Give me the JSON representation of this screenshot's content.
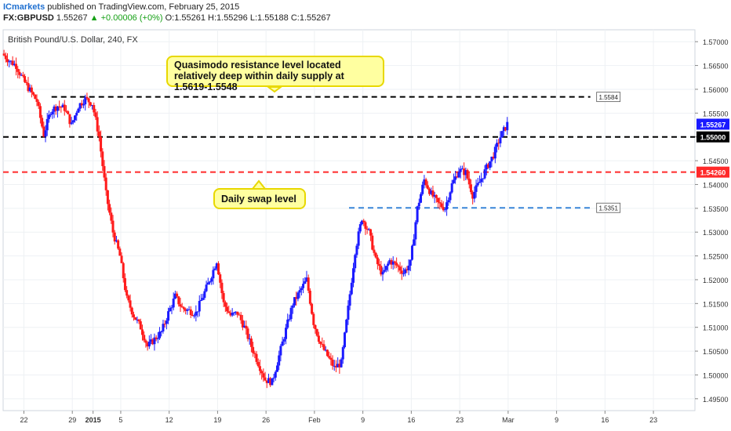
{
  "header": {
    "publisher": "ICmarkets",
    "published_text": "published on TradingView.com, February 25, 2015",
    "symbol": "FX:GBPUSD",
    "last": "1.55267",
    "change": "▲ +0.00006 (+0%)",
    "open": "O:1.55261",
    "high": "H:1.55296",
    "low": "L:1.55188",
    "close": "C:1.55267"
  },
  "chart_title": "British Pound/U.S. Dollar, 240, FX",
  "annotations": {
    "qm_text": "Quasimodo resistance level located relatively deep within daily supply at 1.5619-1.5548",
    "swap_text": "Daily swap level"
  },
  "colors": {
    "up": "#1a1aff",
    "down": "#ff1a1a",
    "resistance": "#000000",
    "swap": "#ff2a2a",
    "support": "#3a86d8",
    "last_price": "#1a1aff"
  },
  "chart_data": {
    "type": "candlestick",
    "title": "British Pound/U.S. Dollar, 240, FX",
    "ylim": [
      1.4925,
      1.5725
    ],
    "y_ticks": [
      "1.57000",
      "1.56500",
      "1.56000",
      "1.55500",
      "1.55000",
      "1.54500",
      "1.54000",
      "1.53500",
      "1.53000",
      "1.52500",
      "1.52000",
      "1.51500",
      "1.51000",
      "1.50500",
      "1.50000",
      "1.49500"
    ],
    "x_ticks": [
      "22",
      "29",
      "2015",
      "5",
      "12",
      "19",
      "26",
      "Feb",
      "9",
      "16",
      "23",
      "Mar",
      "9",
      "16",
      "23"
    ],
    "x_tick_bold": [
      "2015"
    ],
    "x_range": [
      "Dec 19, 2014",
      "Mar 29, 2015"
    ],
    "series": [
      {
        "type": "anchors",
        "note": "approximate price path",
        "points": [
          [
            "Dec 19",
            1.5675
          ],
          [
            "Dec 20",
            1.566
          ],
          [
            "Dec 21",
            1.565
          ],
          [
            "Dec 22",
            1.562
          ],
          [
            "Dec 24",
            1.5575
          ],
          [
            "Dec 25",
            1.5505
          ],
          [
            "Dec 26",
            1.5555
          ],
          [
            "Dec 27",
            1.5565
          ],
          [
            "Dec 28",
            1.556
          ],
          [
            "Dec 29",
            1.5525
          ],
          [
            "Dec 30",
            1.5565
          ],
          [
            "Dec 31",
            1.558
          ],
          [
            "Jan 1",
            1.557
          ],
          [
            "Jan 2",
            1.55
          ],
          [
            "Jan 3",
            1.538
          ],
          [
            "Jan 4",
            1.53
          ],
          [
            "Jan 5",
            1.525
          ],
          [
            "Jan 6",
            1.516
          ],
          [
            "Jan 7",
            1.5125
          ],
          [
            "Jan 8",
            1.51
          ],
          [
            "Jan 9",
            1.506
          ],
          [
            "Jan 10",
            1.5075
          ],
          [
            "Jan 11",
            1.509
          ],
          [
            "Jan 12",
            1.513
          ],
          [
            "Jan 13",
            1.5165
          ],
          [
            "Jan 14",
            1.514
          ],
          [
            "Jan 16",
            1.513
          ],
          [
            "Jan 18",
            1.52
          ],
          [
            "Jan 19",
            1.524
          ],
          [
            "Jan 20",
            1.515
          ],
          [
            "Jan 21",
            1.5125
          ],
          [
            "Jan 22",
            1.513
          ],
          [
            "Jan 23",
            1.51
          ],
          [
            "Jan 24",
            1.506
          ],
          [
            "Jan 26",
            1.499
          ],
          [
            "Jan 27",
            1.4985
          ],
          [
            "Jan 28",
            1.504
          ],
          [
            "Jan 29",
            1.5095
          ],
          [
            "Jan 30",
            1.515
          ],
          [
            "Feb 1",
            1.52
          ],
          [
            "Feb 2",
            1.511
          ],
          [
            "Feb 3",
            1.5065
          ],
          [
            "Feb 4",
            1.504
          ],
          [
            "Feb 5",
            1.5015
          ],
          [
            "Feb 6",
            1.5025
          ],
          [
            "Feb 7",
            1.514
          ],
          [
            "Feb 8",
            1.526
          ],
          [
            "Feb 9",
            1.533
          ],
          [
            "Feb 10",
            1.53
          ],
          [
            "Feb 11",
            1.524
          ],
          [
            "Feb 12",
            1.521
          ],
          [
            "Feb 13",
            1.524
          ],
          [
            "Feb 14",
            1.523
          ],
          [
            "Feb 15",
            1.5215
          ],
          [
            "Feb 16",
            1.5235
          ],
          [
            "Feb 17",
            1.535
          ],
          [
            "Feb 18",
            1.541
          ],
          [
            "Feb 19",
            1.538
          ],
          [
            "Feb 20",
            1.536
          ],
          [
            "Feb 21",
            1.535
          ],
          [
            "Feb 22",
            1.54
          ],
          [
            "Feb 23",
            1.543
          ],
          [
            "Feb 24",
            1.5425
          ],
          [
            "Feb 25",
            1.5378
          ],
          [
            "Feb 26",
            1.5405
          ],
          [
            "Feb 27",
            1.5435
          ],
          [
            "Feb 28",
            1.5462
          ],
          [
            "Mar 1",
            1.55
          ],
          [
            "Mar 2",
            1.5527
          ]
        ]
      }
    ],
    "levels": [
      {
        "label": "1.5584",
        "value": 1.5584,
        "style": "dashed",
        "color": "#000000"
      },
      {
        "label": "1.55000",
        "value": 1.55,
        "style": "dashed",
        "color": "#000000"
      },
      {
        "label": "1.54260",
        "value": 1.5426,
        "style": "dashed",
        "color": "#ff2a2a"
      },
      {
        "label": "1.5351",
        "value": 1.5351,
        "style": "dashed",
        "color": "#3a86d8"
      }
    ],
    "last_price": {
      "label": "1.55267",
      "value": 1.55267
    },
    "xlabel": "",
    "ylabel": ""
  }
}
